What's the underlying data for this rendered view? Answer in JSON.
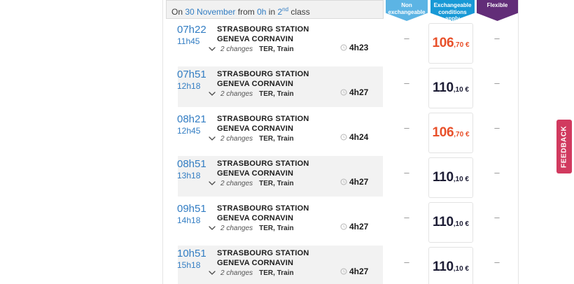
{
  "colors": {
    "link_blue": "#327dc3",
    "time_blue": "#327dc3",
    "price_highlight": "#e8502a",
    "price_normal": "#1d1d35",
    "feedback_bg": "#d13a5f"
  },
  "summary_bar": {
    "on_label": "On",
    "date": "30 November",
    "from_label": "from",
    "time": "0h",
    "in_label": "in",
    "class_num": "2",
    "class_sup": "nd",
    "class_label": "class"
  },
  "fare_columns": [
    {
      "id": "non-exchangeable",
      "label": "Non exchangeable",
      "color": "#5cb4e4"
    },
    {
      "id": "exchangeable",
      "label": "Exchangeable conditions apply",
      "color": "#1899d6"
    },
    {
      "id": "flexible",
      "label": "Flexible",
      "color": "#622d78"
    }
  ],
  "journeys": [
    {
      "departure": "07h22",
      "arrival": "11h45",
      "origin": "STRASBOURG STATION",
      "destination": "GENEVA CORNAVIN",
      "changes": "2 changes",
      "transport": "TER, Train",
      "duration": "4h23",
      "non_exchangeable": "–",
      "price_main": "106",
      "price_cents": ",70 €",
      "price_highlighted": true,
      "flexible": "–"
    },
    {
      "departure": "07h51",
      "arrival": "12h18",
      "origin": "STRASBOURG STATION",
      "destination": "GENEVA CORNAVIN",
      "changes": "2 changes",
      "transport": "TER, Train",
      "duration": "4h27",
      "non_exchangeable": "–",
      "price_main": "110",
      "price_cents": ",10 €",
      "price_highlighted": false,
      "flexible": "–"
    },
    {
      "departure": "08h21",
      "arrival": "12h45",
      "origin": "STRASBOURG STATION",
      "destination": "GENEVA CORNAVIN",
      "changes": "2 changes",
      "transport": "TER, Train",
      "duration": "4h24",
      "non_exchangeable": "–",
      "price_main": "106",
      "price_cents": ",70 €",
      "price_highlighted": true,
      "flexible": "–"
    },
    {
      "departure": "08h51",
      "arrival": "13h18",
      "origin": "STRASBOURG STATION",
      "destination": "GENEVA CORNAVIN",
      "changes": "2 changes",
      "transport": "TER, Train",
      "duration": "4h27",
      "non_exchangeable": "–",
      "price_main": "110",
      "price_cents": ",10 €",
      "price_highlighted": false,
      "flexible": "–"
    },
    {
      "departure": "09h51",
      "arrival": "14h18",
      "origin": "STRASBOURG STATION",
      "destination": "GENEVA CORNAVIN",
      "changes": "2 changes",
      "transport": "TER, Train",
      "duration": "4h27",
      "non_exchangeable": "–",
      "price_main": "110",
      "price_cents": ",10 €",
      "price_highlighted": false,
      "flexible": "–"
    },
    {
      "departure": "10h51",
      "arrival": "15h18",
      "origin": "STRASBOURG STATION",
      "destination": "GENEVA CORNAVIN",
      "changes": "2 changes",
      "transport": "TER, Train",
      "duration": "4h27",
      "non_exchangeable": "–",
      "price_main": "110",
      "price_cents": ",10 €",
      "price_highlighted": false,
      "flexible": "–"
    }
  ],
  "feedback_button": {
    "label": "FEEDBACK"
  },
  "icons": {
    "chevron-down-icon": "⌄",
    "clock-icon": "◷"
  }
}
